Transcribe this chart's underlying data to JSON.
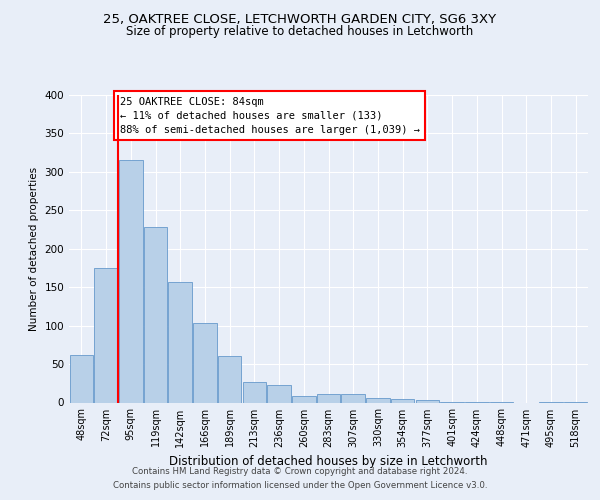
{
  "title1": "25, OAKTREE CLOSE, LETCHWORTH GARDEN CITY, SG6 3XY",
  "title2": "Size of property relative to detached houses in Letchworth",
  "xlabel": "Distribution of detached houses by size in Letchworth",
  "ylabel": "Number of detached properties",
  "categories": [
    "48sqm",
    "72sqm",
    "95sqm",
    "119sqm",
    "142sqm",
    "166sqm",
    "189sqm",
    "213sqm",
    "236sqm",
    "260sqm",
    "283sqm",
    "307sqm",
    "330sqm",
    "354sqm",
    "377sqm",
    "401sqm",
    "424sqm",
    "448sqm",
    "471sqm",
    "495sqm",
    "518sqm"
  ],
  "values": [
    62,
    175,
    315,
    228,
    157,
    103,
    61,
    27,
    23,
    9,
    11,
    11,
    6,
    4,
    3,
    1,
    1,
    1,
    0,
    1,
    1
  ],
  "bar_color": "#b8d0e8",
  "bar_edge_color": "#6699cc",
  "vline_x": 1.5,
  "vline_color": "red",
  "annotation_text": "25 OAKTREE CLOSE: 84sqm\n← 11% of detached houses are smaller (133)\n88% of semi-detached houses are larger (1,039) →",
  "annotation_box_color": "white",
  "annotation_box_edge_color": "red",
  "ylim": [
    0,
    400
  ],
  "yticks": [
    0,
    50,
    100,
    150,
    200,
    250,
    300,
    350,
    400
  ],
  "footer1": "Contains HM Land Registry data © Crown copyright and database right 2024.",
  "footer2": "Contains public sector information licensed under the Open Government Licence v3.0.",
  "bg_color": "#e8eef8",
  "plot_bg_color": "#e8eef8",
  "grid_color": "white"
}
